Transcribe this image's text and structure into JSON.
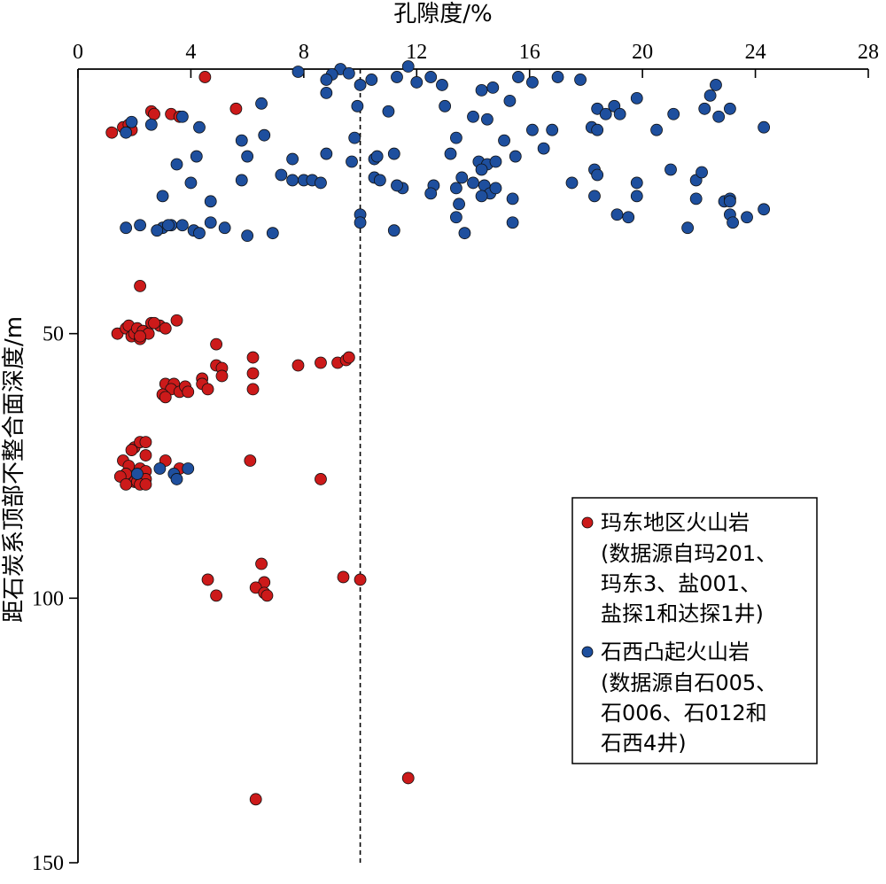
{
  "chart_data": {
    "type": "scatter",
    "xlabel": "孔隙度/%",
    "ylabel": "距石炭系顶部不整合面深度/m",
    "xlim": [
      0,
      28
    ],
    "ylim": [
      0,
      150
    ],
    "y_inverted": true,
    "x_axis_position": "top",
    "x_ticks": [
      0,
      4,
      8,
      12,
      16,
      20,
      24,
      28
    ],
    "y_ticks": [
      50,
      100,
      150
    ],
    "reference_line": {
      "x": 10,
      "style": "dashed",
      "color": "#000000"
    },
    "legend_position": "bottom-right",
    "series": [
      {
        "legend_lines": [
          "玛东地区火山岩",
          "(数据源自玛201、",
          "玛东3、盐001、",
          "盐探1和达探1井)"
        ],
        "color": "#cc1a1a",
        "points": [
          [
            4.5,
            1.5
          ],
          [
            5.6,
            7.5
          ],
          [
            1.2,
            12
          ],
          [
            1.6,
            11
          ],
          [
            1.8,
            10.5
          ],
          [
            1.9,
            11.5
          ],
          [
            2.6,
            8
          ],
          [
            2.7,
            8.5
          ],
          [
            3.3,
            8.5
          ],
          [
            3.6,
            9
          ],
          [
            2.2,
            41
          ],
          [
            3.5,
            47.5
          ],
          [
            1.4,
            50
          ],
          [
            1.7,
            49
          ],
          [
            1.8,
            48.5
          ],
          [
            1.9,
            50.5
          ],
          [
            2.0,
            50
          ],
          [
            2.1,
            49
          ],
          [
            2.2,
            51
          ],
          [
            2.3,
            49.5
          ],
          [
            2.5,
            50
          ],
          [
            2.6,
            48
          ],
          [
            2.9,
            48.5
          ],
          [
            3.1,
            49
          ],
          [
            2.7,
            48
          ],
          [
            2.2,
            50.5
          ],
          [
            4.9,
            52
          ],
          [
            6.2,
            54.5
          ],
          [
            4.9,
            56
          ],
          [
            5.1,
            56.5
          ],
          [
            5.1,
            58
          ],
          [
            6.2,
            57.5
          ],
          [
            7.8,
            56
          ],
          [
            8.6,
            55.5
          ],
          [
            9.2,
            55.5
          ],
          [
            9.5,
            55
          ],
          [
            9.6,
            54.5
          ],
          [
            4.4,
            58.5
          ],
          [
            4.4,
            59.5
          ],
          [
            4.6,
            60.5
          ],
          [
            6.2,
            60.5
          ],
          [
            3.1,
            59.5
          ],
          [
            3.4,
            59.5
          ],
          [
            3.3,
            60.5
          ],
          [
            3.6,
            61
          ],
          [
            3.8,
            60
          ],
          [
            3.9,
            61
          ],
          [
            3.0,
            61.5
          ],
          [
            3.1,
            62
          ],
          [
            2.0,
            71.5
          ],
          [
            2.2,
            70.5
          ],
          [
            2.4,
            70.5
          ],
          [
            1.9,
            72
          ],
          [
            2.4,
            73
          ],
          [
            1.6,
            74
          ],
          [
            1.8,
            75
          ],
          [
            1.7,
            76.5
          ],
          [
            2.2,
            75.5
          ],
          [
            2.4,
            76
          ],
          [
            3.1,
            74
          ],
          [
            3.6,
            75.5
          ],
          [
            1.5,
            77
          ],
          [
            2.0,
            78
          ],
          [
            2.1,
            78
          ],
          [
            2.4,
            77.5
          ],
          [
            1.7,
            78.5
          ],
          [
            2.2,
            78.5
          ],
          [
            2.4,
            78.5
          ],
          [
            6.1,
            74
          ],
          [
            8.6,
            77.5
          ],
          [
            6.5,
            93.5
          ],
          [
            6.6,
            97
          ],
          [
            6.3,
            98
          ],
          [
            6.6,
            99
          ],
          [
            6.7,
            99.5
          ],
          [
            4.6,
            96.5
          ],
          [
            4.9,
            99.5
          ],
          [
            9.4,
            96
          ],
          [
            10.0,
            96.5
          ],
          [
            11.7,
            134
          ],
          [
            6.3,
            138
          ]
        ]
      },
      {
        "legend_lines": [
          "石西凸起火山岩",
          "(数据源自石005、",
          "石006、石012和",
          "石西4井)"
        ],
        "color": "#1e4f9e",
        "points": [
          [
            7.8,
            0.5
          ],
          [
            9.3,
            0
          ],
          [
            9.6,
            0.8
          ],
          [
            11.7,
            -0.5
          ],
          [
            9.0,
            1
          ],
          [
            8.8,
            2
          ],
          [
            10.0,
            3
          ],
          [
            10.4,
            2
          ],
          [
            11.3,
            1.5
          ],
          [
            12.0,
            2.5
          ],
          [
            12.5,
            1.5
          ],
          [
            12.9,
            3
          ],
          [
            8.8,
            4.5
          ],
          [
            6.5,
            6.5
          ],
          [
            9.9,
            7
          ],
          [
            11.0,
            8
          ],
          [
            13.0,
            7
          ],
          [
            14.3,
            4
          ],
          [
            14.7,
            3.5
          ],
          [
            15.3,
            6
          ],
          [
            15.6,
            1.5
          ],
          [
            16.1,
            2.5
          ],
          [
            17.0,
            1.5
          ],
          [
            17.8,
            2
          ],
          [
            19.8,
            5.5
          ],
          [
            22.6,
            3
          ],
          [
            22.4,
            5
          ],
          [
            18.4,
            7.5
          ],
          [
            18.7,
            8.5
          ],
          [
            19.0,
            7
          ],
          [
            19.2,
            8.5
          ],
          [
            21.1,
            8.5
          ],
          [
            22.2,
            7.5
          ],
          [
            22.7,
            9
          ],
          [
            23.1,
            7.5
          ],
          [
            24.3,
            11
          ],
          [
            1.7,
            12
          ],
          [
            1.9,
            10
          ],
          [
            2.6,
            10.5
          ],
          [
            3.7,
            9
          ],
          [
            4.3,
            11
          ],
          [
            6.6,
            12.5
          ],
          [
            5.8,
            13.5
          ],
          [
            6.0,
            16.5
          ],
          [
            9.8,
            13
          ],
          [
            10.5,
            17
          ],
          [
            10.6,
            16.5
          ],
          [
            11.2,
            16
          ],
          [
            8.8,
            16
          ],
          [
            9.7,
            17.5
          ],
          [
            7.6,
            17
          ],
          [
            13.4,
            13
          ],
          [
            14.0,
            9
          ],
          [
            14.5,
            9.5
          ],
          [
            15.1,
            13.5
          ],
          [
            16.1,
            11.5
          ],
          [
            16.5,
            15
          ],
          [
            16.8,
            11.5
          ],
          [
            15.5,
            16.5
          ],
          [
            13.2,
            16
          ],
          [
            14.2,
            17.5
          ],
          [
            14.5,
            18
          ],
          [
            14.8,
            17.5
          ],
          [
            14.3,
            19
          ],
          [
            18.2,
            11
          ],
          [
            18.4,
            11.5
          ],
          [
            20.5,
            11.5
          ],
          [
            3.5,
            18
          ],
          [
            4.2,
            16.5
          ],
          [
            7.2,
            20
          ],
          [
            8.0,
            21
          ],
          [
            7.6,
            21
          ],
          [
            8.3,
            21
          ],
          [
            8.6,
            21.5
          ],
          [
            10.5,
            20.5
          ],
          [
            10.7,
            21
          ],
          [
            11.5,
            22.5
          ],
          [
            11.3,
            22
          ],
          [
            12.6,
            22
          ],
          [
            12.5,
            23.5
          ],
          [
            13.4,
            22.5
          ],
          [
            13.6,
            20.5
          ],
          [
            14.0,
            21.5
          ],
          [
            14.4,
            22
          ],
          [
            14.6,
            23.5
          ],
          [
            14.8,
            22.5
          ],
          [
            14.3,
            24
          ],
          [
            15.4,
            24.5
          ],
          [
            13.5,
            25.5
          ],
          [
            13.4,
            28
          ],
          [
            5.8,
            21
          ],
          [
            4.0,
            21.5
          ],
          [
            3.0,
            24
          ],
          [
            4.7,
            25
          ],
          [
            3.0,
            30
          ],
          [
            3.3,
            29.5
          ],
          [
            1.7,
            30
          ],
          [
            2.2,
            29.5
          ],
          [
            2.8,
            30.5
          ],
          [
            3.2,
            29.5
          ],
          [
            3.7,
            29.5
          ],
          [
            4.1,
            30.5
          ],
          [
            4.3,
            31
          ],
          [
            4.7,
            29
          ],
          [
            5.2,
            30
          ],
          [
            6.0,
            31.5
          ],
          [
            6.9,
            31
          ],
          [
            10.0,
            27.5
          ],
          [
            10.0,
            29
          ],
          [
            11.2,
            30.5
          ],
          [
            13.7,
            31
          ],
          [
            15.4,
            29
          ],
          [
            17.5,
            21.5
          ],
          [
            18.3,
            19
          ],
          [
            18.4,
            20
          ],
          [
            18.3,
            24
          ],
          [
            19.8,
            21.5
          ],
          [
            19.8,
            24
          ],
          [
            19.1,
            27.5
          ],
          [
            19.5,
            28
          ],
          [
            21.0,
            19
          ],
          [
            21.9,
            21
          ],
          [
            22.1,
            19.5
          ],
          [
            21.9,
            24.5
          ],
          [
            22.9,
            25
          ],
          [
            23.1,
            24.5
          ],
          [
            23.1,
            25
          ],
          [
            23.1,
            27.5
          ],
          [
            23.2,
            29
          ],
          [
            23.7,
            28
          ],
          [
            24.3,
            26.5
          ],
          [
            21.6,
            30
          ],
          [
            2.1,
            76.5
          ],
          [
            2.9,
            75.5
          ],
          [
            3.4,
            76.5
          ],
          [
            3.5,
            77.5
          ],
          [
            3.9,
            75.5
          ]
        ]
      }
    ]
  }
}
